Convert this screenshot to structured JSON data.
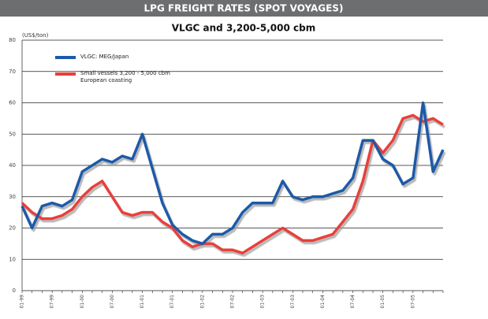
{
  "chart_data": {
    "type": "line",
    "title": "LPG FREIGHT RATES (SPOT VOYAGES)",
    "subtitle": "VLGC and 3,200-5,000 cbm",
    "y_label": "(US$/ton)",
    "categories": [
      "01-99",
      null,
      null,
      "07-99",
      null,
      null,
      "01-00",
      null,
      null,
      "07-00",
      null,
      null,
      "01-01",
      null,
      null,
      "07-01",
      null,
      null,
      "01-02",
      null,
      null,
      "07-02",
      null,
      null,
      "01-03",
      null,
      null,
      "07-03",
      null,
      null,
      "01-04",
      null,
      null,
      "07-04",
      null,
      null,
      "01-05",
      null,
      null,
      "07-05",
      null,
      null,
      null
    ],
    "series": [
      {
        "name": "VLGC: MEG/Japan",
        "color": "#1a5aa8",
        "values": [
          27,
          20,
          27,
          28,
          27,
          29,
          38,
          40,
          42,
          41,
          43,
          42,
          50,
          39,
          28,
          21,
          18,
          16,
          15,
          18,
          18,
          20,
          25,
          28,
          28,
          28,
          35,
          30,
          29,
          30,
          30,
          31,
          32,
          36,
          48,
          48,
          42,
          40,
          34,
          36,
          60,
          38,
          45
        ]
      },
      {
        "name": "Small vessels 3,200 - 5,000 cbm European coasting",
        "color": "#e8403a",
        "values": [
          28,
          25,
          23,
          23,
          24,
          26,
          30,
          33,
          35,
          30,
          25,
          24,
          25,
          25,
          22,
          20,
          16,
          14,
          15,
          15,
          13,
          13,
          12,
          14,
          16,
          18,
          20,
          18,
          16,
          16,
          17,
          18,
          22,
          26,
          35,
          48,
          44,
          48,
          55,
          56,
          54,
          55,
          53
        ]
      }
    ],
    "ylim": [
      0,
      80
    ],
    "yticks": [
      0,
      10,
      20,
      30,
      40,
      50,
      60,
      70,
      80
    ],
    "grid": true,
    "legend": "upper left"
  }
}
